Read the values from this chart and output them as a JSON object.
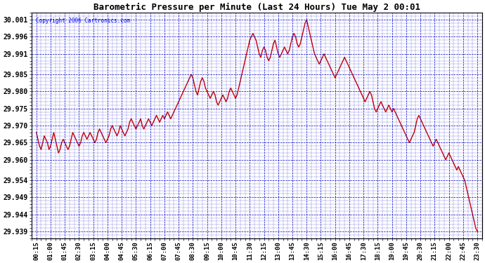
{
  "title": "Barometric Pressure per Minute (Last 24 Hours) Tue May 2 00:01",
  "copyright": "Copyright 2006 Cartronics.com",
  "bg_color": "#ffffff",
  "plot_bg_color": "#ffffff",
  "line_color": "#cc0000",
  "grid_color": "#0000cc",
  "title_color": "#000000",
  "ytick_labels": [
    "29.939",
    "29.944",
    "29.949",
    "29.954",
    "29.960",
    "29.965",
    "29.970",
    "29.975",
    "29.980",
    "29.985",
    "29.991",
    "29.996",
    "30.001"
  ],
  "ytick_values": [
    29.939,
    29.944,
    29.949,
    29.954,
    29.96,
    29.965,
    29.97,
    29.975,
    29.98,
    29.985,
    29.991,
    29.996,
    30.001
  ],
  "ylim": [
    29.937,
    30.003
  ],
  "xtick_labels": [
    "00:15",
    "01:00",
    "01:45",
    "02:30",
    "03:15",
    "04:00",
    "04:45",
    "05:30",
    "06:15",
    "07:00",
    "07:45",
    "08:30",
    "09:15",
    "10:00",
    "10:45",
    "11:30",
    "12:15",
    "13:00",
    "13:45",
    "14:30",
    "15:15",
    "16:00",
    "16:45",
    "17:30",
    "18:15",
    "19:00",
    "19:45",
    "20:30",
    "21:15",
    "22:00",
    "22:45",
    "23:30"
  ],
  "time_points": [
    15,
    60,
    105,
    150,
    195,
    240,
    285,
    330,
    375,
    420,
    465,
    510,
    555,
    600,
    645,
    690,
    735,
    780,
    825,
    870,
    915,
    960,
    1005,
    1050,
    1095,
    1140,
    1185,
    1230,
    1275,
    1320,
    1365,
    1410
  ],
  "pressure_data": [
    [
      15,
      29.968
    ],
    [
      20,
      29.966
    ],
    [
      25,
      29.964
    ],
    [
      30,
      29.963
    ],
    [
      35,
      29.965
    ],
    [
      40,
      29.967
    ],
    [
      45,
      29.966
    ],
    [
      50,
      29.965
    ],
    [
      55,
      29.963
    ],
    [
      60,
      29.964
    ],
    [
      65,
      29.966
    ],
    [
      70,
      29.968
    ],
    [
      75,
      29.966
    ],
    [
      80,
      29.964
    ],
    [
      85,
      29.962
    ],
    [
      90,
      29.963
    ],
    [
      95,
      29.965
    ],
    [
      100,
      29.966
    ],
    [
      105,
      29.965
    ],
    [
      110,
      29.964
    ],
    [
      115,
      29.963
    ],
    [
      120,
      29.964
    ],
    [
      125,
      29.966
    ],
    [
      130,
      29.968
    ],
    [
      135,
      29.967
    ],
    [
      140,
      29.966
    ],
    [
      145,
      29.965
    ],
    [
      150,
      29.964
    ],
    [
      155,
      29.965
    ],
    [
      160,
      29.967
    ],
    [
      165,
      29.968
    ],
    [
      170,
      29.967
    ],
    [
      175,
      29.966
    ],
    [
      180,
      29.967
    ],
    [
      185,
      29.968
    ],
    [
      190,
      29.967
    ],
    [
      195,
      29.966
    ],
    [
      200,
      29.965
    ],
    [
      205,
      29.966
    ],
    [
      210,
      29.968
    ],
    [
      215,
      29.969
    ],
    [
      220,
      29.968
    ],
    [
      225,
      29.967
    ],
    [
      230,
      29.966
    ],
    [
      235,
      29.965
    ],
    [
      240,
      29.966
    ],
    [
      245,
      29.967
    ],
    [
      250,
      29.969
    ],
    [
      255,
      29.97
    ],
    [
      260,
      29.969
    ],
    [
      265,
      29.968
    ],
    [
      270,
      29.967
    ],
    [
      275,
      29.968
    ],
    [
      280,
      29.97
    ],
    [
      285,
      29.969
    ],
    [
      290,
      29.968
    ],
    [
      295,
      29.967
    ],
    [
      300,
      29.968
    ],
    [
      305,
      29.969
    ],
    [
      310,
      29.971
    ],
    [
      315,
      29.972
    ],
    [
      320,
      29.971
    ],
    [
      325,
      29.97
    ],
    [
      330,
      29.969
    ],
    [
      335,
      29.97
    ],
    [
      340,
      29.971
    ],
    [
      345,
      29.972
    ],
    [
      350,
      29.97
    ],
    [
      355,
      29.969
    ],
    [
      360,
      29.97
    ],
    [
      365,
      29.971
    ],
    [
      370,
      29.972
    ],
    [
      375,
      29.971
    ],
    [
      380,
      29.97
    ],
    [
      385,
      29.971
    ],
    [
      390,
      29.972
    ],
    [
      395,
      29.973
    ],
    [
      400,
      29.972
    ],
    [
      405,
      29.971
    ],
    [
      410,
      29.972
    ],
    [
      415,
      29.973
    ],
    [
      420,
      29.972
    ],
    [
      425,
      29.973
    ],
    [
      430,
      29.974
    ],
    [
      435,
      29.973
    ],
    [
      440,
      29.972
    ],
    [
      445,
      29.973
    ],
    [
      450,
      29.974
    ],
    [
      455,
      29.975
    ],
    [
      460,
      29.976
    ],
    [
      465,
      29.977
    ],
    [
      470,
      29.978
    ],
    [
      475,
      29.979
    ],
    [
      480,
      29.98
    ],
    [
      485,
      29.981
    ],
    [
      490,
      29.982
    ],
    [
      495,
      29.983
    ],
    [
      500,
      29.984
    ],
    [
      505,
      29.985
    ],
    [
      510,
      29.984
    ],
    [
      515,
      29.982
    ],
    [
      520,
      29.98
    ],
    [
      525,
      29.979
    ],
    [
      530,
      29.981
    ],
    [
      535,
      29.983
    ],
    [
      540,
      29.984
    ],
    [
      545,
      29.983
    ],
    [
      550,
      29.981
    ],
    [
      555,
      29.98
    ],
    [
      560,
      29.979
    ],
    [
      565,
      29.978
    ],
    [
      570,
      29.979
    ],
    [
      575,
      29.98
    ],
    [
      580,
      29.979
    ],
    [
      585,
      29.977
    ],
    [
      590,
      29.976
    ],
    [
      595,
      29.977
    ],
    [
      600,
      29.978
    ],
    [
      605,
      29.979
    ],
    [
      610,
      29.978
    ],
    [
      615,
      29.977
    ],
    [
      620,
      29.978
    ],
    [
      625,
      29.98
    ],
    [
      630,
      29.981
    ],
    [
      635,
      29.98
    ],
    [
      640,
      29.979
    ],
    [
      645,
      29.978
    ],
    [
      650,
      29.979
    ],
    [
      655,
      29.981
    ],
    [
      660,
      29.983
    ],
    [
      665,
      29.985
    ],
    [
      670,
      29.987
    ],
    [
      675,
      29.989
    ],
    [
      680,
      29.991
    ],
    [
      685,
      29.993
    ],
    [
      690,
      29.995
    ],
    [
      695,
      29.996
    ],
    [
      700,
      29.997
    ],
    [
      705,
      29.996
    ],
    [
      710,
      29.995
    ],
    [
      715,
      29.993
    ],
    [
      720,
      29.991
    ],
    [
      725,
      29.99
    ],
    [
      730,
      29.992
    ],
    [
      735,
      29.993
    ],
    [
      740,
      29.992
    ],
    [
      745,
      29.99
    ],
    [
      750,
      29.989
    ],
    [
      755,
      29.99
    ],
    [
      760,
      29.992
    ],
    [
      765,
      29.994
    ],
    [
      770,
      29.995
    ],
    [
      775,
      29.993
    ],
    [
      780,
      29.991
    ],
    [
      785,
      29.99
    ],
    [
      790,
      29.991
    ],
    [
      795,
      29.992
    ],
    [
      800,
      29.993
    ],
    [
      805,
      29.992
    ],
    [
      810,
      29.991
    ],
    [
      815,
      29.992
    ],
    [
      820,
      29.994
    ],
    [
      825,
      29.996
    ],
    [
      830,
      29.997
    ],
    [
      835,
      29.996
    ],
    [
      840,
      29.994
    ],
    [
      845,
      29.993
    ],
    [
      850,
      29.994
    ],
    [
      855,
      29.996
    ],
    [
      860,
      29.998
    ],
    [
      865,
      30.0
    ],
    [
      870,
      30.001
    ],
    [
      875,
      29.999
    ],
    [
      880,
      29.997
    ],
    [
      885,
      29.995
    ],
    [
      890,
      29.993
    ],
    [
      895,
      29.991
    ],
    [
      900,
      29.99
    ],
    [
      905,
      29.989
    ],
    [
      910,
      29.988
    ],
    [
      915,
      29.989
    ],
    [
      920,
      29.99
    ],
    [
      925,
      29.991
    ],
    [
      930,
      29.99
    ],
    [
      935,
      29.989
    ],
    [
      940,
      29.988
    ],
    [
      945,
      29.987
    ],
    [
      950,
      29.986
    ],
    [
      955,
      29.985
    ],
    [
      960,
      29.984
    ],
    [
      965,
      29.985
    ],
    [
      970,
      29.986
    ],
    [
      975,
      29.987
    ],
    [
      980,
      29.988
    ],
    [
      985,
      29.989
    ],
    [
      990,
      29.99
    ],
    [
      995,
      29.989
    ],
    [
      1000,
      29.988
    ],
    [
      1005,
      29.987
    ],
    [
      1010,
      29.986
    ],
    [
      1015,
      29.985
    ],
    [
      1020,
      29.984
    ],
    [
      1025,
      29.983
    ],
    [
      1030,
      29.982
    ],
    [
      1035,
      29.981
    ],
    [
      1040,
      29.98
    ],
    [
      1045,
      29.979
    ],
    [
      1050,
      29.978
    ],
    [
      1055,
      29.977
    ],
    [
      1060,
      29.978
    ],
    [
      1065,
      29.979
    ],
    [
      1070,
      29.98
    ],
    [
      1075,
      29.979
    ],
    [
      1080,
      29.977
    ],
    [
      1085,
      29.975
    ],
    [
      1090,
      29.974
    ],
    [
      1095,
      29.975
    ],
    [
      1100,
      29.976
    ],
    [
      1105,
      29.977
    ],
    [
      1110,
      29.976
    ],
    [
      1115,
      29.975
    ],
    [
      1120,
      29.974
    ],
    [
      1125,
      29.975
    ],
    [
      1130,
      29.976
    ],
    [
      1135,
      29.975
    ],
    [
      1140,
      29.974
    ],
    [
      1145,
      29.975
    ],
    [
      1150,
      29.974
    ],
    [
      1155,
      29.973
    ],
    [
      1160,
      29.972
    ],
    [
      1165,
      29.971
    ],
    [
      1170,
      29.97
    ],
    [
      1175,
      29.969
    ],
    [
      1180,
      29.968
    ],
    [
      1185,
      29.967
    ],
    [
      1190,
      29.966
    ],
    [
      1195,
      29.965
    ],
    [
      1200,
      29.966
    ],
    [
      1205,
      29.967
    ],
    [
      1210,
      29.968
    ],
    [
      1215,
      29.97
    ],
    [
      1220,
      29.972
    ],
    [
      1225,
      29.973
    ],
    [
      1230,
      29.972
    ],
    [
      1235,
      29.971
    ],
    [
      1240,
      29.97
    ],
    [
      1245,
      29.969
    ],
    [
      1250,
      29.968
    ],
    [
      1255,
      29.967
    ],
    [
      1260,
      29.966
    ],
    [
      1265,
      29.965
    ],
    [
      1270,
      29.964
    ],
    [
      1275,
      29.965
    ],
    [
      1280,
      29.966
    ],
    [
      1285,
      29.965
    ],
    [
      1290,
      29.964
    ],
    [
      1295,
      29.963
    ],
    [
      1300,
      29.962
    ],
    [
      1305,
      29.961
    ],
    [
      1310,
      29.96
    ],
    [
      1315,
      29.961
    ],
    [
      1320,
      29.962
    ],
    [
      1325,
      29.961
    ],
    [
      1330,
      29.96
    ],
    [
      1335,
      29.959
    ],
    [
      1340,
      29.958
    ],
    [
      1345,
      29.957
    ],
    [
      1350,
      29.958
    ],
    [
      1355,
      29.957
    ],
    [
      1360,
      29.956
    ],
    [
      1365,
      29.955
    ],
    [
      1370,
      29.954
    ],
    [
      1375,
      29.952
    ],
    [
      1380,
      29.95
    ],
    [
      1385,
      29.948
    ],
    [
      1390,
      29.946
    ],
    [
      1395,
      29.944
    ],
    [
      1400,
      29.942
    ],
    [
      1405,
      29.94
    ],
    [
      1410,
      29.939
    ]
  ]
}
